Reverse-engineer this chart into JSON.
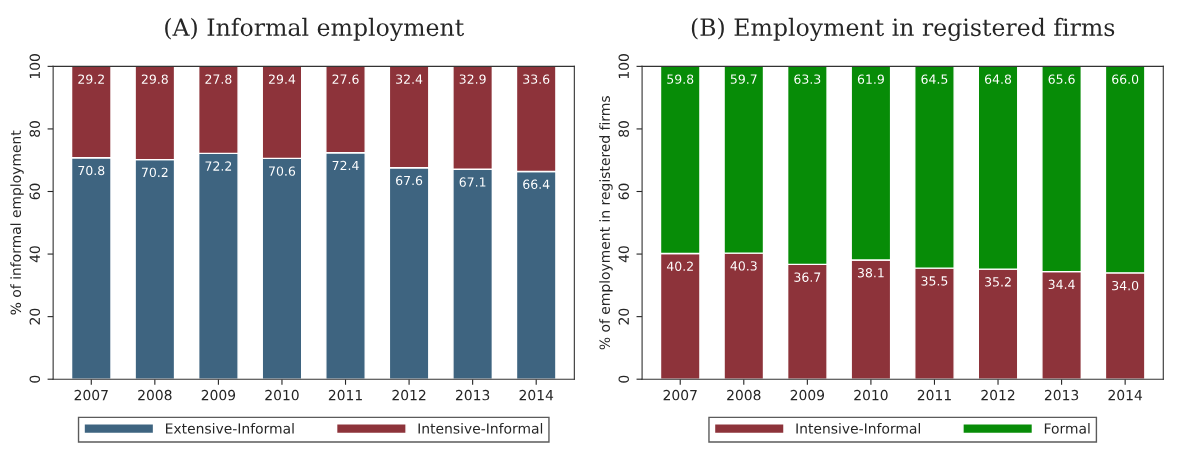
{
  "chart_data": [
    {
      "type": "bar",
      "title": "(A) Informal employment",
      "ylabel": "% of informal employment",
      "categories": [
        "2007",
        "2008",
        "2009",
        "2010",
        "2011",
        "2012",
        "2013",
        "2014"
      ],
      "stacked": true,
      "data_labels": true,
      "legend": "bottom",
      "grid": false,
      "ylim": [
        0,
        100
      ],
      "yticks": [
        0,
        20,
        40,
        60,
        80,
        100
      ],
      "series": [
        {
          "name": "Extensive-Informal",
          "color": "#3e6480",
          "values": [
            70.8,
            70.2,
            72.2,
            70.6,
            72.4,
            67.6,
            67.1,
            66.4
          ]
        },
        {
          "name": "Intensive-Informal",
          "color": "#8d333a",
          "values": [
            29.2,
            29.8,
            27.8,
            29.4,
            27.6,
            32.4,
            32.9,
            33.6
          ]
        }
      ]
    },
    {
      "type": "bar",
      "title": "(B) Employment in registered firms",
      "ylabel": "% of employment in registered firms",
      "categories": [
        "2007",
        "2008",
        "2009",
        "2010",
        "2011",
        "2012",
        "2013",
        "2014"
      ],
      "stacked": true,
      "data_labels": true,
      "legend": "bottom",
      "grid": false,
      "ylim": [
        0,
        100
      ],
      "yticks": [
        0,
        20,
        40,
        60,
        80,
        100
      ],
      "series": [
        {
          "name": "Intensive-Informal",
          "color": "#8d333a",
          "values": [
            40.2,
            40.3,
            36.7,
            38.1,
            35.5,
            35.2,
            34.4,
            34
          ],
          "value_labels": [
            "40.2",
            "40.3",
            "36.7",
            "38.1",
            "35.5",
            "35.2",
            "34.4",
            "34.0"
          ]
        },
        {
          "name": "Formal",
          "color": "#078c07",
          "values": [
            59.8,
            59.7,
            63.3,
            61.9,
            64.5,
            64.8,
            65.6,
            66
          ],
          "value_labels": [
            "59.8",
            "59.7",
            "63.3",
            "61.9",
            "64.5",
            "64.8",
            "65.6",
            "66.0"
          ]
        }
      ]
    }
  ]
}
